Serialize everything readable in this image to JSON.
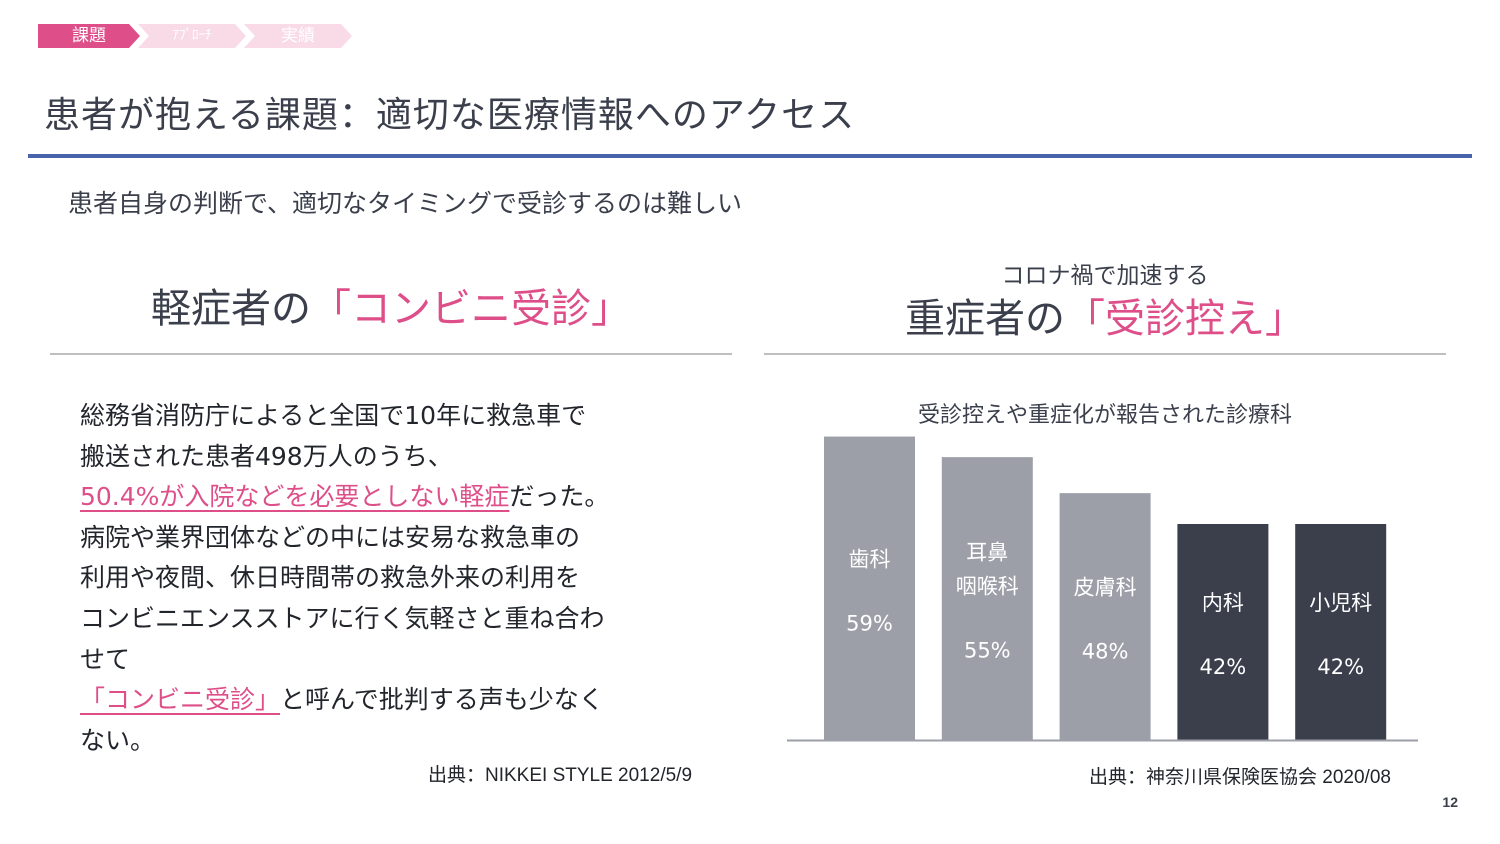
{
  "breadcrumb": {
    "items": [
      {
        "label": "課題",
        "active": true
      },
      {
        "label": "ｱﾌﾟﾛｰﾁ",
        "active": false
      },
      {
        "label": "実績",
        "active": false
      }
    ]
  },
  "page_title": "患者が抱える課題：適切な医療情報へのアクセス",
  "subtitle": "患者自身の判断で、適切なタイミングで受診するのは難しい",
  "left": {
    "heading_prefix": "軽症者の",
    "heading_highlight": "「コンビニ受診」",
    "lines": {
      "l1": "総務省消防庁によると全国で10年に救急車で",
      "l2": "搬送された患者498万人のうち、",
      "l3_highlight": "50.4%が入院などを必要としない軽症",
      "l3_rest": "だった。",
      "l4": "病院や業界団体などの中には安易な救急車の",
      "l5": "利用や夜間、休日時間帯の救急外来の利用を",
      "l6": "コンビニエンスストアに行く気軽さと重ね合わ",
      "l7": "せて",
      "l8_highlight": "「コンビニ受診」",
      "l8_rest": "と呼んで批判する声も少なく",
      "l9": "ない。"
    },
    "source": "出典：NIKKEI STYLE 2012/5/9"
  },
  "right": {
    "pre_heading": "コロナ禍で加速する",
    "heading_prefix": "重症者の",
    "heading_highlight": "「受診控え」",
    "source": "出典：神奈川県保険医協会 2020/08"
  },
  "chart_data": {
    "type": "bar",
    "title": "受診控えや重症化が報告された診療科",
    "categories": [
      "歯科",
      "耳鼻\n咽喉科",
      "皮膚科",
      "内科",
      "小児科"
    ],
    "values": [
      59,
      55,
      48,
      42,
      42
    ],
    "value_labels": [
      "59%",
      "55%",
      "48%",
      "42%",
      "42%"
    ],
    "ylim": [
      0,
      70
    ],
    "xlabel": "",
    "ylabel": "",
    "colors": [
      "#9c9fa8",
      "#9c9fa8",
      "#9c9fa8",
      "#3b3f4c",
      "#3b3f4c"
    ],
    "grid": false
  },
  "colors": {
    "accent_pink": "#de4f8a",
    "accent_blue": "#4a63ad",
    "text_dark": "#3a3f4b"
  },
  "page_number": "12"
}
